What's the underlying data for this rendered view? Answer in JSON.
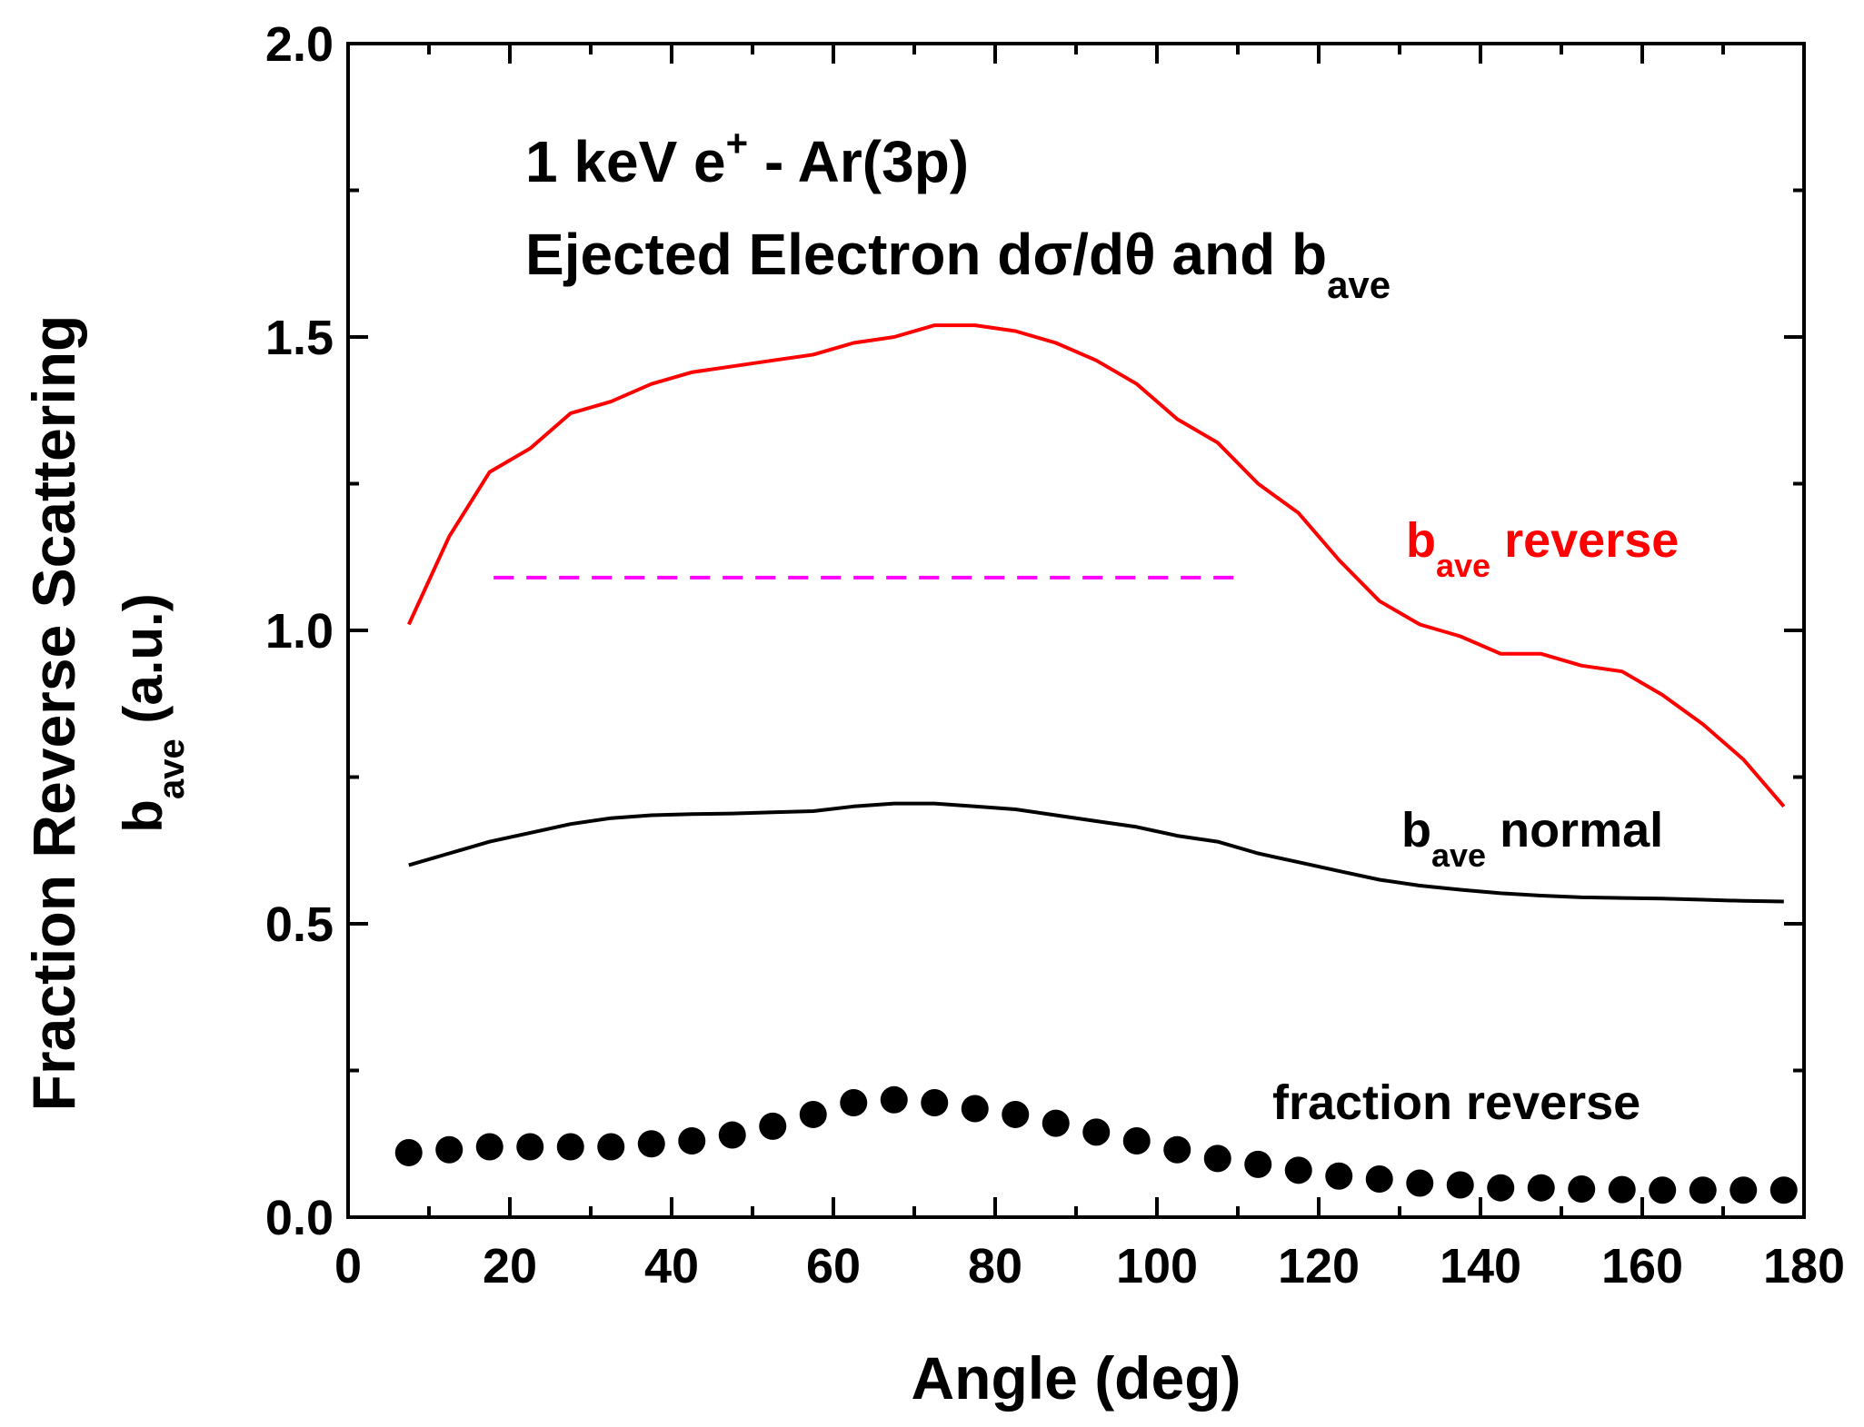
{
  "chart_data": {
    "type": "line",
    "title_line1": "1 keV e",
    "title_line1_sup": "+",
    "title_line1_tail": " - Ar(3p)",
    "title_line2": "Ejected Electron dσ/dθ and b",
    "title_line2_sub": "ave",
    "xlabel": "Angle (deg)",
    "ylabel_outer": "Fraction Reverse Scattering",
    "ylabel_inner_main": "b",
    "ylabel_inner_sub": "ave",
    "ylabel_inner_tail": " (a.u.)",
    "xlim": [
      0,
      180
    ],
    "ylim": [
      0,
      2
    ],
    "xticks": [
      0,
      20,
      40,
      60,
      80,
      100,
      120,
      140,
      160,
      180
    ],
    "yticks": [
      0,
      0.5,
      1.0,
      1.5,
      2.0
    ],
    "xtick_labels": [
      "0",
      "20",
      "40",
      "60",
      "80",
      "100",
      "120",
      "140",
      "160",
      "180"
    ],
    "ytick_labels": [
      "0.0",
      "0.5",
      "1.0",
      "1.5",
      "2.0"
    ],
    "colors": {
      "reverse": "#ff0000",
      "normal": "#000000",
      "fraction": "#000000",
      "reference": "#ff00ff"
    },
    "series": [
      {
        "name": "b_ave reverse",
        "label_main": "b",
        "label_sub": "ave",
        "label_tail": " reverse",
        "style": "line",
        "x": [
          7.5,
          12.5,
          17.5,
          22.5,
          27.5,
          32.5,
          37.5,
          42.5,
          47.5,
          52.5,
          57.5,
          62.5,
          67.5,
          72.5,
          77.5,
          82.5,
          87.5,
          92.5,
          97.5,
          102.5,
          107.5,
          112.5,
          117.5,
          122.5,
          127.5,
          132.5,
          137.5,
          142.5,
          147.5,
          152.5,
          157.5,
          162.5,
          167.5,
          172.5,
          177.5
        ],
        "y": [
          1.01,
          1.16,
          1.27,
          1.31,
          1.37,
          1.39,
          1.42,
          1.44,
          1.45,
          1.46,
          1.47,
          1.49,
          1.5,
          1.52,
          1.52,
          1.51,
          1.49,
          1.46,
          1.42,
          1.36,
          1.32,
          1.25,
          1.2,
          1.12,
          1.05,
          1.01,
          0.99,
          0.96,
          0.96,
          0.94,
          0.93,
          0.89,
          0.84,
          0.78,
          0.7
        ]
      },
      {
        "name": "b_ave normal",
        "label_main": "b",
        "label_sub": "ave",
        "label_tail": " normal",
        "style": "line",
        "x": [
          7.5,
          12.5,
          17.5,
          22.5,
          27.5,
          32.5,
          37.5,
          42.5,
          47.5,
          52.5,
          57.5,
          62.5,
          67.5,
          72.5,
          77.5,
          82.5,
          87.5,
          92.5,
          97.5,
          102.5,
          107.5,
          112.5,
          117.5,
          122.5,
          127.5,
          132.5,
          137.5,
          142.5,
          147.5,
          152.5,
          157.5,
          162.5,
          167.5,
          172.5,
          177.5
        ],
        "y": [
          0.6,
          0.62,
          0.64,
          0.655,
          0.67,
          0.68,
          0.685,
          0.687,
          0.688,
          0.69,
          0.692,
          0.7,
          0.705,
          0.705,
          0.7,
          0.695,
          0.685,
          0.675,
          0.665,
          0.65,
          0.64,
          0.62,
          0.605,
          0.59,
          0.575,
          0.565,
          0.558,
          0.552,
          0.548,
          0.545,
          0.544,
          0.543,
          0.541,
          0.539,
          0.538
        ]
      },
      {
        "name": "fraction reverse",
        "label_main": "fraction reverse",
        "style": "scatter",
        "x": [
          7.5,
          12.5,
          17.5,
          22.5,
          27.5,
          32.5,
          37.5,
          42.5,
          47.5,
          52.5,
          57.5,
          62.5,
          67.5,
          72.5,
          77.5,
          82.5,
          87.5,
          92.5,
          97.5,
          102.5,
          107.5,
          112.5,
          117.5,
          122.5,
          127.5,
          132.5,
          137.5,
          142.5,
          147.5,
          152.5,
          157.5,
          162.5,
          167.5,
          172.5,
          177.5
        ],
        "y": [
          0.11,
          0.115,
          0.12,
          0.12,
          0.12,
          0.12,
          0.125,
          0.13,
          0.14,
          0.155,
          0.175,
          0.195,
          0.2,
          0.195,
          0.185,
          0.175,
          0.16,
          0.145,
          0.13,
          0.115,
          0.1,
          0.09,
          0.08,
          0.07,
          0.065,
          0.058,
          0.055,
          0.05,
          0.05,
          0.048,
          0.047,
          0.046,
          0.046,
          0.046,
          0.046
        ]
      },
      {
        "name": "reference",
        "style": "dashed",
        "x": [
          18,
          110
        ],
        "y": [
          1.09,
          1.09
        ]
      }
    ]
  }
}
